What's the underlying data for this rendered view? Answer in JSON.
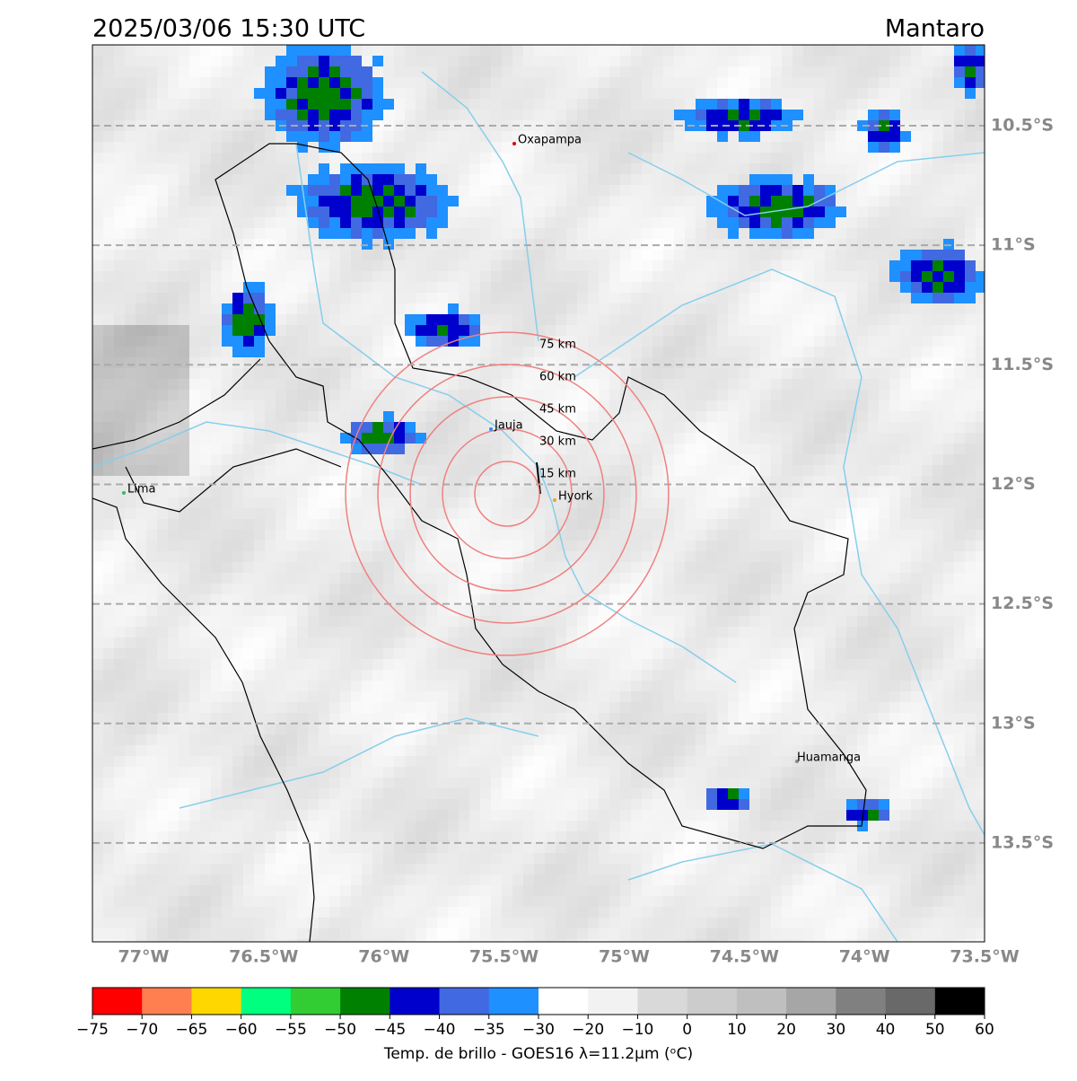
{
  "map": {
    "title": "2025/03/06 15:30 UTC",
    "region": "Mantaro",
    "lat_ticks": [
      {
        "value": -10.5,
        "label": "10.5°S"
      },
      {
        "value": -11,
        "label": "11°S"
      },
      {
        "value": -11.5,
        "label": "11.5°S"
      },
      {
        "value": -12,
        "label": "12°S"
      },
      {
        "value": -12.5,
        "label": "12.5°S"
      },
      {
        "value": -13,
        "label": "13°S"
      },
      {
        "value": -13.5,
        "label": "13.5°S"
      }
    ],
    "lon_ticks": [
      {
        "value": -77,
        "label": "77°W"
      },
      {
        "value": -76.5,
        "label": "76.5°W"
      },
      {
        "value": -76,
        "label": "76°W"
      },
      {
        "value": -75.5,
        "label": "75.5°W"
      },
      {
        "value": -75,
        "label": "75°W"
      },
      {
        "value": -74.5,
        "label": "74.5°W"
      },
      {
        "value": -74,
        "label": "74°W"
      },
      {
        "value": -73.5,
        "label": "73.5°W"
      }
    ],
    "cities": [
      "Oxapampa",
      "Jauja",
      "Hyork",
      "Lima",
      "Huamanga"
    ],
    "rings": [
      {
        "value": 15,
        "label": "15 km"
      },
      {
        "value": 30,
        "label": "30 km"
      },
      {
        "value": 45,
        "label": "45 km"
      },
      {
        "value": 60,
        "label": "60 km"
      },
      {
        "value": 75,
        "label": "75 km"
      }
    ],
    "colorbar": {
      "label": "Temp. de brillo - GOES16 λ=11.2μm (ᵒC)",
      "ticks": [
        {
          "value": -75,
          "label": "−75"
        },
        {
          "value": -70,
          "label": "−70"
        },
        {
          "value": -65,
          "label": "−65"
        },
        {
          "value": -60,
          "label": "−60"
        },
        {
          "value": -55,
          "label": "−55"
        },
        {
          "value": -50,
          "label": "−50"
        },
        {
          "value": -45,
          "label": "−45"
        },
        {
          "value": -40,
          "label": "−40"
        },
        {
          "value": -35,
          "label": "−35"
        },
        {
          "value": -30,
          "label": "−30"
        },
        {
          "value": -20,
          "label": "−20"
        },
        {
          "value": -10,
          "label": "−10"
        },
        0,
        10,
        20,
        30,
        40,
        50,
        60
      ],
      "colors": [
        "#ff0000",
        "#ff7f50",
        "#ffd700",
        "#00ff7f",
        "#32cd32",
        "#008000",
        "#0000cd",
        "#4169e1",
        "#1e90ff",
        "#ffffff",
        "#f2f2f2",
        "#d9d9d9",
        "#cccccc",
        "#bfbfbf",
        "#a6a6a6",
        "#808080",
        "#696969",
        "#000000"
      ]
    }
  }
}
